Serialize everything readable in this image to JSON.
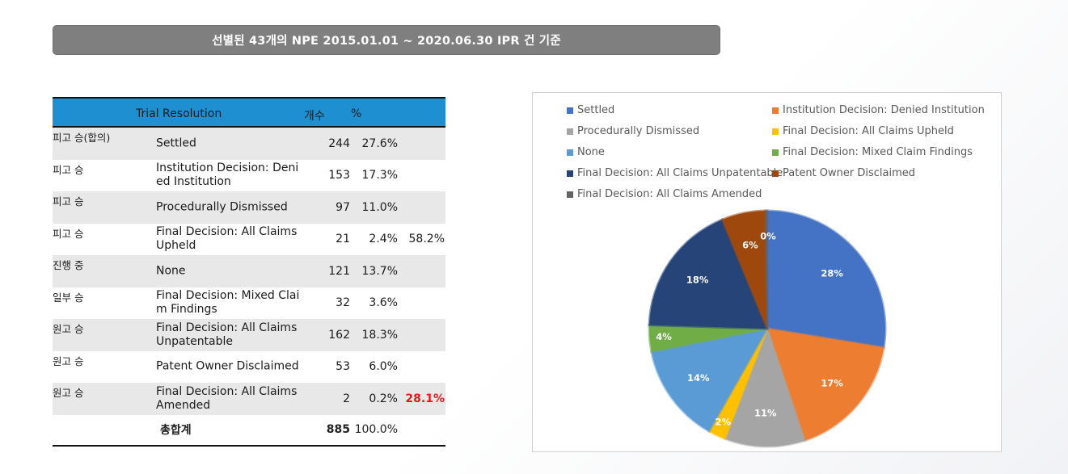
{
  "banner": {
    "title": "선별된 43개의 NPE 2015.01.01  ~ 2020.06.30  IPR 건 기준"
  },
  "table": {
    "headers": {
      "resolution": "Trial Resolution",
      "count": "개수",
      "percent": "%"
    },
    "rows": [
      {
        "outcome": "피고 승(합의)",
        "resolution": "Settled",
        "count": "244",
        "percent": "27.6%",
        "group": ""
      },
      {
        "outcome": "피고 승",
        "resolution": "Institution Decision: Denied Institution",
        "count": "153",
        "percent": "17.3%",
        "group": ""
      },
      {
        "outcome": "피고 승",
        "resolution": "Procedurally Dismissed",
        "count": "97",
        "percent": "11.0%",
        "group": ""
      },
      {
        "outcome": "피고 승",
        "resolution": "Final Decision: All Claims Upheld",
        "count": "21",
        "percent": "2.4%",
        "group": "58.2%"
      },
      {
        "outcome": "진행 중",
        "resolution": "None",
        "count": "121",
        "percent": "13.7%",
        "group": ""
      },
      {
        "outcome": "일부 승",
        "resolution": "Final Decision: Mixed Claim Findings",
        "count": "32",
        "percent": "3.6%",
        "group": ""
      },
      {
        "outcome": "원고 승",
        "resolution": "Final Decision: All Claims Unpatentable",
        "count": "162",
        "percent": "18.3%",
        "group": ""
      },
      {
        "outcome": "원고 승",
        "resolution": "Patent Owner Disclaimed",
        "count": "53",
        "percent": "6.0%",
        "group": ""
      },
      {
        "outcome": "원고 승",
        "resolution": "Final Decision: All Claims Amended",
        "count": "2",
        "percent": "0.2%",
        "group": "28.1%"
      }
    ],
    "total": {
      "label": "총합계",
      "count": "885",
      "percent": "100.0%"
    }
  },
  "colors": {
    "header_bg": "#1e8fd0",
    "group_highlight": "#e31b1b"
  },
  "chart_data": {
    "type": "pie",
    "categories": [
      "Settled",
      "Institution Decision: Denied Institution",
      "Procedurally Dismissed",
      "Final Decision: All Claims Upheld",
      "None",
      "Final Decision: Mixed Claim Findings",
      "Final Decision: All Claims Unpatentable",
      "Patent Owner Disclaimed",
      "Final Decision: All Claims Amended"
    ],
    "values": [
      244,
      153,
      97,
      21,
      121,
      32,
      162,
      53,
      2
    ],
    "data_labels": [
      "28%",
      "17%",
      "11%",
      "2%",
      "14%",
      "4%",
      "18%",
      "6%",
      "0%"
    ],
    "colors": [
      "#4472c4",
      "#ed7d31",
      "#a5a5a5",
      "#ffc000",
      "#5b9bd5",
      "#70ad47",
      "#264478",
      "#9e480e",
      "#636363"
    ],
    "legend_placement": "top",
    "start_angle": "12 o'clock, clockwise"
  }
}
